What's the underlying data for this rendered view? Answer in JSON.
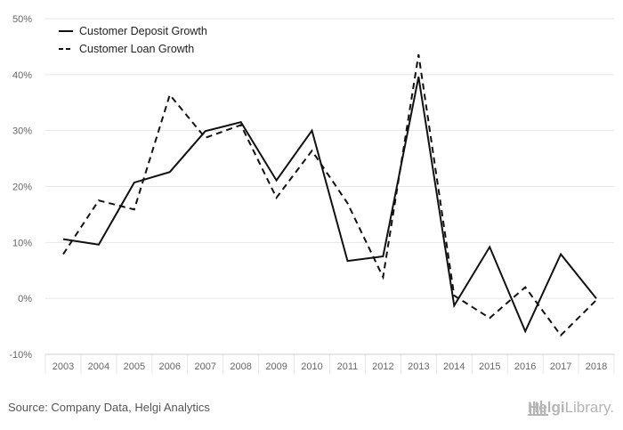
{
  "chart_data": {
    "type": "line",
    "categories": [
      "2003",
      "2004",
      "2005",
      "2006",
      "2007",
      "2008",
      "2009",
      "2010",
      "2011",
      "2012",
      "2013",
      "2014",
      "2015",
      "2016",
      "2017",
      "2018"
    ],
    "series": [
      {
        "name": "Customer Deposit Growth",
        "style": "solid",
        "color": "#111111",
        "values": [
          10.6,
          9.6,
          20.7,
          22.6,
          29.9,
          31.5,
          21.1,
          30.0,
          6.7,
          7.5,
          39.6,
          -1.3,
          9.2,
          -5.9,
          7.9,
          0.0
        ]
      },
      {
        "name": "Customer Loan Growth",
        "style": "dashed",
        "color": "#111111",
        "values": [
          7.9,
          17.5,
          15.9,
          36.4,
          28.7,
          31.0,
          18.0,
          26.4,
          17.0,
          3.8,
          43.6,
          0.5,
          -3.5,
          2.0,
          -6.6,
          -0.3
        ]
      }
    ],
    "yticks": [
      "-10%",
      "0%",
      "10%",
      "20%",
      "30%",
      "40%",
      "50%"
    ],
    "ylim": [
      -10,
      50
    ],
    "grid": true,
    "legend_position": "top-left"
  },
  "footer": {
    "source_text": "Source: Company Data, Helgi Analytics",
    "logo_text_bold": "Helgi",
    "logo_text_regular": "Library."
  }
}
